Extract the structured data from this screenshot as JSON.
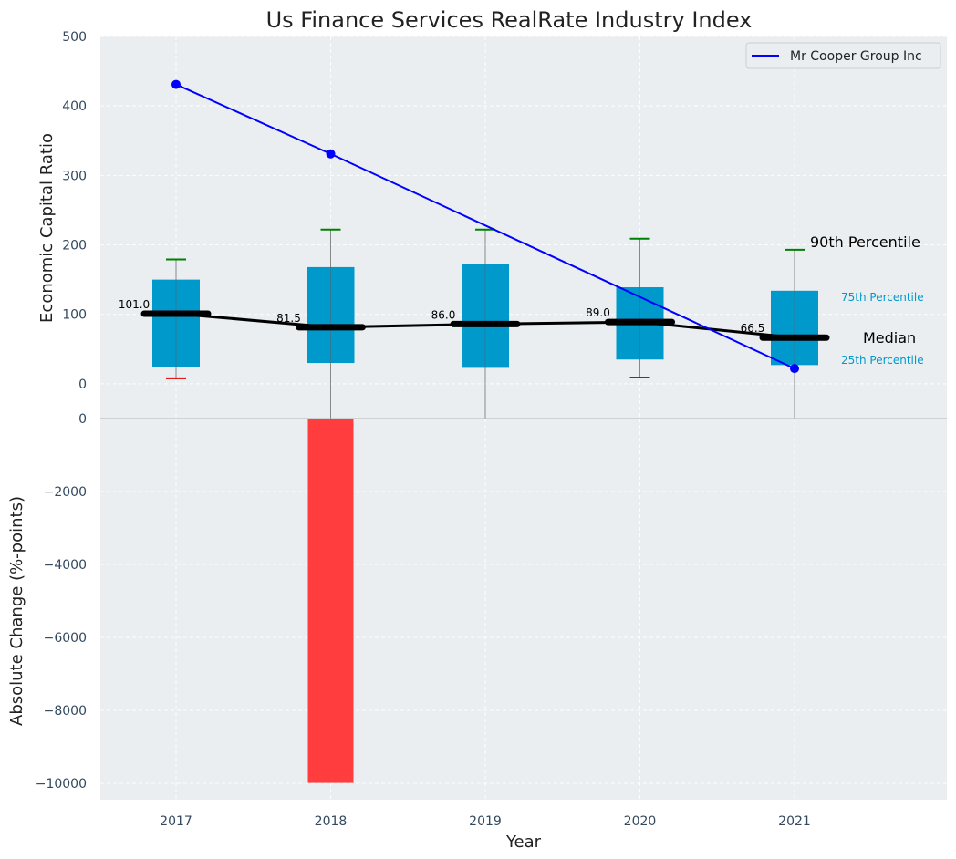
{
  "chart_data": {
    "type": "box-and-bar",
    "title": "Us Finance Services RealRate Industry Index",
    "xlabel": "Year",
    "categories": [
      "2017",
      "2018",
      "2019",
      "2020",
      "2021"
    ],
    "top_panel": {
      "ylabel": "Economic Capital Ratio",
      "ylim": [
        -50,
        500
      ],
      "yticks": [
        "0",
        "100",
        "200",
        "300",
        "400",
        "500"
      ],
      "boxes": [
        {
          "year": "2017",
          "p10": 8,
          "p25": 24,
          "median": 101.0,
          "p75": 150,
          "p90": 179,
          "median_label": "101.0",
          "whisker_color": "#dd0000"
        },
        {
          "year": "2018",
          "p10": -50,
          "p25": 30,
          "median": 81.5,
          "p75": 168,
          "p90": 222,
          "median_label": "81.5",
          "whisker_color": "none"
        },
        {
          "year": "2019",
          "p10": -50,
          "p25": 23,
          "median": 86.0,
          "p75": 172,
          "p90": 222,
          "median_label": "86.0",
          "whisker_color": "none"
        },
        {
          "year": "2020",
          "p10": 9,
          "p25": 35,
          "median": 89.0,
          "p75": 139,
          "p90": 209,
          "median_label": "89.0",
          "whisker_color": "#dd0000"
        },
        {
          "year": "2021",
          "p10": -50,
          "p25": 27,
          "median": 66.5,
          "p75": 134,
          "p90": 193,
          "median_label": "66.5",
          "whisker_color": "none"
        }
      ],
      "company_series": {
        "name": "Mr Cooper Group Inc",
        "color": "#0000ff",
        "values": [
          431,
          331,
          null,
          null,
          22
        ]
      },
      "annotations": {
        "p90": "90th Percentile",
        "p75": "75th Percentile",
        "median": "Median",
        "p25": "25th Percentile"
      }
    },
    "bottom_panel": {
      "ylabel": "Absolute Change (%-points)",
      "ylim": [
        -10450,
        0
      ],
      "yticks": [
        "0",
        "−2000",
        "−4000",
        "−6000",
        "−8000",
        "−10000"
      ],
      "values": [
        0,
        -9990,
        0,
        0,
        0
      ],
      "bar_color": "#ff3d3f"
    },
    "colors": {
      "box": "#0099cc",
      "median": "#000000",
      "p90_whisker": "#008000",
      "panel_bg": "#eaeef0"
    }
  }
}
